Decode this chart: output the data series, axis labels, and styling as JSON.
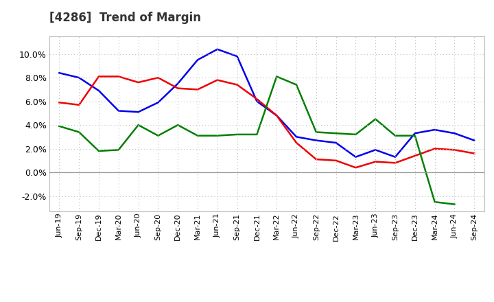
{
  "title": "[4286]  Trend of Margin",
  "x_labels": [
    "Jun-19",
    "Sep-19",
    "Dec-19",
    "Mar-20",
    "Jun-20",
    "Sep-20",
    "Dec-20",
    "Mar-21",
    "Jun-21",
    "Sep-21",
    "Dec-21",
    "Mar-22",
    "Jun-22",
    "Sep-22",
    "Dec-22",
    "Mar-23",
    "Jun-23",
    "Sep-23",
    "Dec-23",
    "Mar-24",
    "Jun-24",
    "Sep-24"
  ],
  "ordinary_income": [
    0.084,
    0.08,
    0.069,
    0.052,
    0.051,
    0.059,
    0.075,
    0.095,
    0.104,
    0.098,
    0.06,
    0.048,
    0.03,
    0.027,
    0.025,
    0.013,
    0.019,
    0.013,
    0.033,
    0.036,
    0.033,
    0.027
  ],
  "net_income": [
    0.059,
    0.057,
    0.081,
    0.081,
    0.076,
    0.08,
    0.071,
    0.07,
    0.078,
    0.074,
    0.062,
    0.048,
    0.025,
    0.011,
    0.01,
    0.004,
    0.009,
    0.008,
    0.014,
    0.02,
    0.019,
    0.016
  ],
  "operating_cashflow": [
    0.039,
    0.034,
    0.018,
    0.019,
    0.04,
    0.031,
    0.04,
    0.031,
    0.031,
    0.032,
    0.032,
    0.081,
    0.074,
    0.034,
    0.033,
    0.032,
    0.045,
    0.031,
    0.031,
    -0.025,
    -0.027,
    null
  ],
  "ylim": [
    -0.033,
    0.115
  ],
  "yticks": [
    -0.02,
    0.0,
    0.02,
    0.04,
    0.06,
    0.08,
    0.1
  ],
  "color_blue": "#0000EE",
  "color_red": "#EE0000",
  "color_green": "#008000",
  "background_color": "#FFFFFF",
  "grid_color": "#BBBBBB",
  "title_fontsize": 12,
  "tick_fontsize": 8
}
